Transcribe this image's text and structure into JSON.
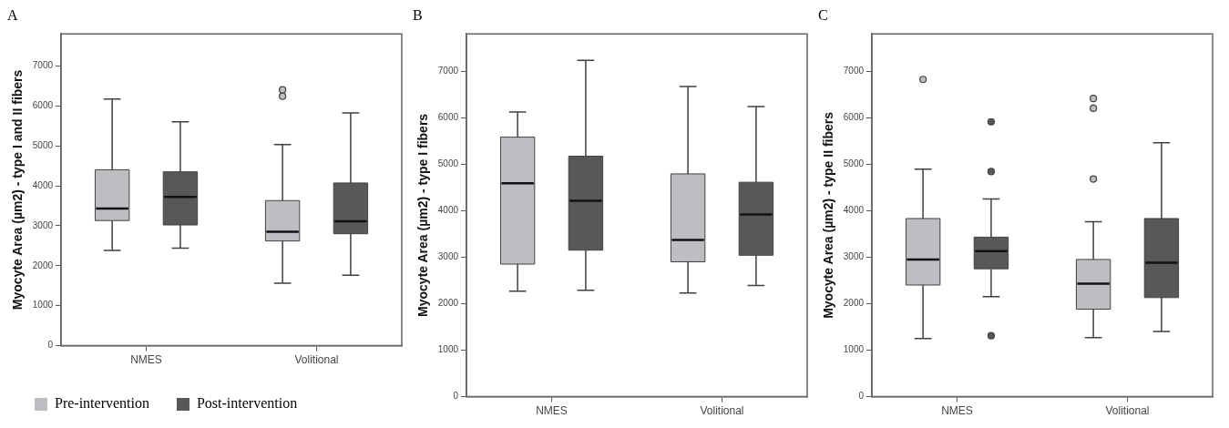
{
  "chart_data": [
    {
      "type": "box",
      "title": "A",
      "ylabel": "Myocyte Area (µm2) - type I and II fibers",
      "categories": [
        "NMES",
        "Volitional"
      ],
      "ylim": [
        0,
        7800
      ],
      "yticks": [
        0,
        1000,
        2000,
        3000,
        4000,
        5000,
        6000,
        7000
      ],
      "grid": false,
      "legend": "bottom",
      "series": [
        {
          "name": "Pre-intervention",
          "color": "#bdbec2",
          "boxes": [
            {
              "low": 2380,
              "q1": 3130,
              "median": 3430,
              "q3": 4400,
              "high": 6170
            },
            {
              "low": 1560,
              "q1": 2620,
              "median": 2850,
              "q3": 3630,
              "high": 5030,
              "outliers": [
                6240,
                6400
              ]
            }
          ]
        },
        {
          "name": "Post-intervention",
          "color": "#58585a",
          "boxes": [
            {
              "low": 2440,
              "q1": 3020,
              "median": 3720,
              "q3": 4350,
              "high": 5600
            },
            {
              "low": 1760,
              "q1": 2800,
              "median": 3110,
              "q3": 4070,
              "high": 5820
            }
          ]
        }
      ]
    },
    {
      "type": "box",
      "title": "B",
      "ylabel": "Myocyte Area (µm2) - type I fibers",
      "categories": [
        "NMES",
        "Volitional"
      ],
      "ylim": [
        0,
        7800
      ],
      "yticks": [
        0,
        1000,
        2000,
        3000,
        4000,
        5000,
        6000,
        7000
      ],
      "grid": false,
      "series": [
        {
          "color": "#bdbec2",
          "boxes": [
            {
              "low": 2270,
              "q1": 2850,
              "median": 4590,
              "q3": 5580,
              "high": 6120
            },
            {
              "low": 2230,
              "q1": 2900,
              "median": 3370,
              "q3": 4790,
              "high": 6670
            }
          ]
        },
        {
          "color": "#58585a",
          "boxes": [
            {
              "low": 2290,
              "q1": 3150,
              "median": 4210,
              "q3": 5170,
              "high": 7230
            },
            {
              "low": 2390,
              "q1": 3040,
              "median": 3920,
              "q3": 4610,
              "high": 6240
            }
          ]
        }
      ]
    },
    {
      "type": "box",
      "title": "C",
      "ylabel": "Myocyte Area (µm2) - type II fibers",
      "categories": [
        "NMES",
        "Volitional"
      ],
      "ylim": [
        0,
        7800
      ],
      "yticks": [
        0,
        1000,
        2000,
        3000,
        4000,
        5000,
        6000,
        7000
      ],
      "grid": false,
      "series": [
        {
          "color": "#bdbec2",
          "boxes": [
            {
              "low": 1250,
              "q1": 2400,
              "median": 2950,
              "q3": 3830,
              "high": 4890,
              "outliers": [
                6820
              ]
            },
            {
              "low": 1270,
              "q1": 1880,
              "median": 2430,
              "q3": 2950,
              "high": 3760,
              "outliers": [
                4680,
                6200,
                6410
              ]
            }
          ]
        },
        {
          "color": "#58585a",
          "boxes": [
            {
              "low": 2150,
              "q1": 2750,
              "median": 3130,
              "q3": 3430,
              "high": 4250,
              "outliers": [
                1310,
                4840,
                5910
              ]
            },
            {
              "low": 1400,
              "q1": 2130,
              "median": 2880,
              "q3": 3830,
              "high": 5460
            }
          ]
        }
      ]
    }
  ]
}
